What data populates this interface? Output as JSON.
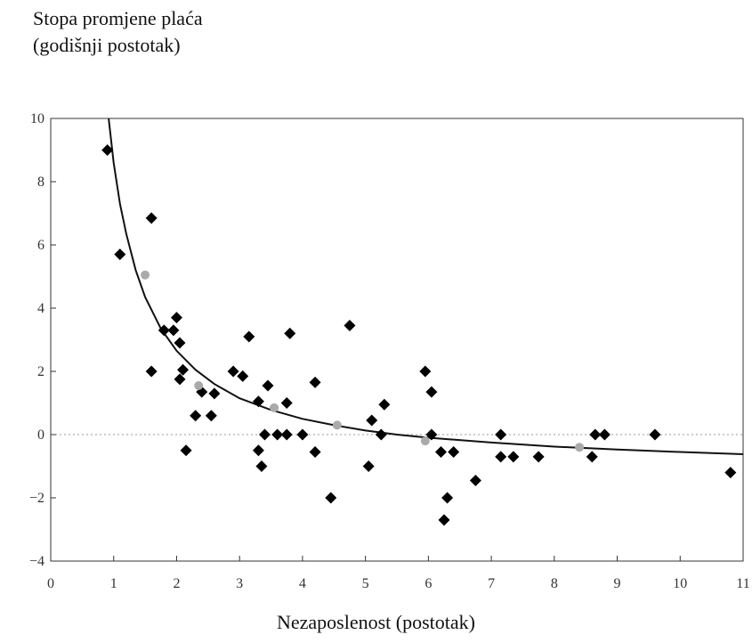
{
  "chart_data": {
    "type": "scatter",
    "ylabel_lines": [
      "Stopa promjene plaća",
      "(godišnji postotak)"
    ],
    "xlabel": "Nezaposlenost (postotak)",
    "xlim": [
      0,
      11
    ],
    "ylim": [
      -4,
      10
    ],
    "xticks": [
      "0",
      "1",
      "2",
      "3",
      "4",
      "5",
      "6",
      "7",
      "8",
      "9",
      "10",
      "11"
    ],
    "yticks": [
      "10",
      "8",
      "6",
      "4",
      "2",
      "0",
      "−2",
      "−4"
    ],
    "ytick_values": [
      10,
      8,
      6,
      4,
      2,
      0,
      -2,
      -4
    ],
    "grid": false,
    "zero_line": "dotted",
    "colors": {
      "primary": "#000000",
      "secondary": "#aaaaaa",
      "curve": "#111111",
      "zero_line": "#999999"
    },
    "series": [
      {
        "marker": "diamond",
        "color": "#000000",
        "points": [
          [
            0.9,
            9.0
          ],
          [
            1.1,
            5.7
          ],
          [
            1.6,
            6.85
          ],
          [
            1.6,
            2.0
          ],
          [
            1.8,
            3.3
          ],
          [
            1.95,
            3.3
          ],
          [
            2.0,
            3.7
          ],
          [
            2.05,
            2.9
          ],
          [
            2.05,
            1.75
          ],
          [
            2.1,
            2.05
          ],
          [
            2.15,
            -0.5
          ],
          [
            2.3,
            0.6
          ],
          [
            2.4,
            1.35
          ],
          [
            2.55,
            0.6
          ],
          [
            2.6,
            1.3
          ],
          [
            2.9,
            2.0
          ],
          [
            3.05,
            1.85
          ],
          [
            3.15,
            3.1
          ],
          [
            3.3,
            1.05
          ],
          [
            3.3,
            -0.5
          ],
          [
            3.35,
            -1.0
          ],
          [
            3.4,
            0.0
          ],
          [
            3.45,
            1.55
          ],
          [
            3.6,
            0.0
          ],
          [
            3.75,
            1.0
          ],
          [
            3.75,
            0.0
          ],
          [
            3.8,
            3.2
          ],
          [
            4.0,
            0.0
          ],
          [
            4.2,
            1.65
          ],
          [
            4.2,
            -0.55
          ],
          [
            4.45,
            -2.0
          ],
          [
            4.75,
            3.45
          ],
          [
            5.05,
            -1.0
          ],
          [
            5.1,
            0.45
          ],
          [
            5.25,
            0.0
          ],
          [
            5.3,
            0.95
          ],
          [
            5.95,
            2.0
          ],
          [
            6.05,
            1.35
          ],
          [
            6.05,
            0.0
          ],
          [
            6.2,
            -0.55
          ],
          [
            6.25,
            -2.7
          ],
          [
            6.3,
            -2.0
          ],
          [
            6.4,
            -0.55
          ],
          [
            6.75,
            -1.45
          ],
          [
            7.15,
            0.0
          ],
          [
            7.15,
            -0.7
          ],
          [
            7.35,
            -0.7
          ],
          [
            7.75,
            -0.7
          ],
          [
            8.6,
            -0.7
          ],
          [
            8.65,
            0.0
          ],
          [
            8.8,
            0.0
          ],
          [
            9.6,
            0.0
          ],
          [
            10.8,
            -1.2
          ]
        ]
      },
      {
        "marker": "circle",
        "color": "#aaaaaa",
        "points": [
          [
            1.5,
            5.05
          ],
          [
            2.35,
            1.55
          ],
          [
            3.55,
            0.85
          ],
          [
            4.55,
            0.3
          ],
          [
            5.95,
            -0.2
          ],
          [
            8.4,
            -0.4
          ]
        ]
      }
    ],
    "curve": {
      "type": "fitted",
      "points": [
        [
          0.92,
          10.0
        ],
        [
          1.0,
          8.6
        ],
        [
          1.1,
          7.3
        ],
        [
          1.2,
          6.35
        ],
        [
          1.35,
          5.2
        ],
        [
          1.5,
          4.35
        ],
        [
          1.75,
          3.35
        ],
        [
          2.0,
          2.65
        ],
        [
          2.3,
          2.05
        ],
        [
          2.6,
          1.6
        ],
        [
          3.0,
          1.15
        ],
        [
          3.5,
          0.78
        ],
        [
          4.0,
          0.5
        ],
        [
          4.5,
          0.3
        ],
        [
          5.0,
          0.13
        ],
        [
          5.5,
          0.0
        ],
        [
          6.0,
          -0.1
        ],
        [
          7.0,
          -0.25
        ],
        [
          8.0,
          -0.38
        ],
        [
          9.0,
          -0.47
        ],
        [
          10.0,
          -0.55
        ],
        [
          11.0,
          -0.62
        ]
      ]
    }
  }
}
